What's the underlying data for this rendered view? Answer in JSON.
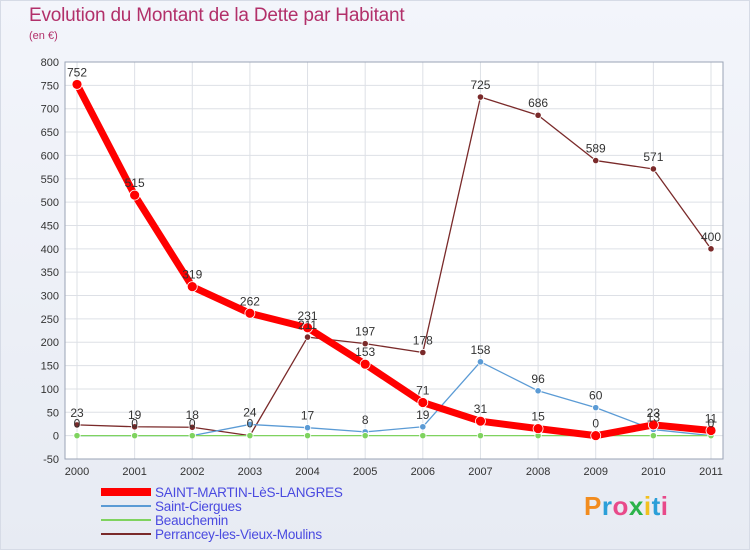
{
  "title": "Evolution du Montant de la Dette par Habitant",
  "subtitle": "(en €)",
  "logo": {
    "text": "Proxiti",
    "colors": [
      "#f28c1e",
      "#2b9fd8",
      "#e84a8a",
      "#2bb34a",
      "#f2c01e",
      "#2b9fd8",
      "#e84a8a"
    ]
  },
  "chart_data": {
    "type": "line",
    "x": [
      2000,
      2001,
      2002,
      2003,
      2004,
      2005,
      2006,
      2007,
      2008,
      2009,
      2010,
      2011
    ],
    "ylim": [
      -50,
      800
    ],
    "yticks": [
      -50,
      0,
      50,
      100,
      150,
      200,
      250,
      300,
      350,
      400,
      450,
      500,
      550,
      600,
      650,
      700,
      750,
      800
    ],
    "grid": true,
    "legend_position": "bottom-left",
    "series": [
      {
        "name": "SAINT-MARTIN-LèS-LANGRES",
        "color": "#ff0000",
        "values": [
          752,
          515,
          319,
          262,
          231,
          153,
          71,
          31,
          15,
          0,
          23,
          11
        ]
      },
      {
        "name": "Saint-Ciergues",
        "color": "#5b9bd5",
        "values": [
          0,
          0,
          0,
          24,
          17,
          8,
          19,
          158,
          96,
          60,
          13,
          0
        ]
      },
      {
        "name": "Beauchemin",
        "color": "#7fd35f",
        "values": [
          0,
          0,
          0,
          0,
          0,
          0,
          0,
          0,
          0,
          0,
          0,
          0
        ]
      },
      {
        "name": "Perrancey-les-Vieux-Moulins",
        "color": "#7a2a2a",
        "values": [
          23,
          19,
          18,
          0,
          211,
          197,
          178,
          725,
          686,
          589,
          571,
          400
        ]
      }
    ]
  }
}
